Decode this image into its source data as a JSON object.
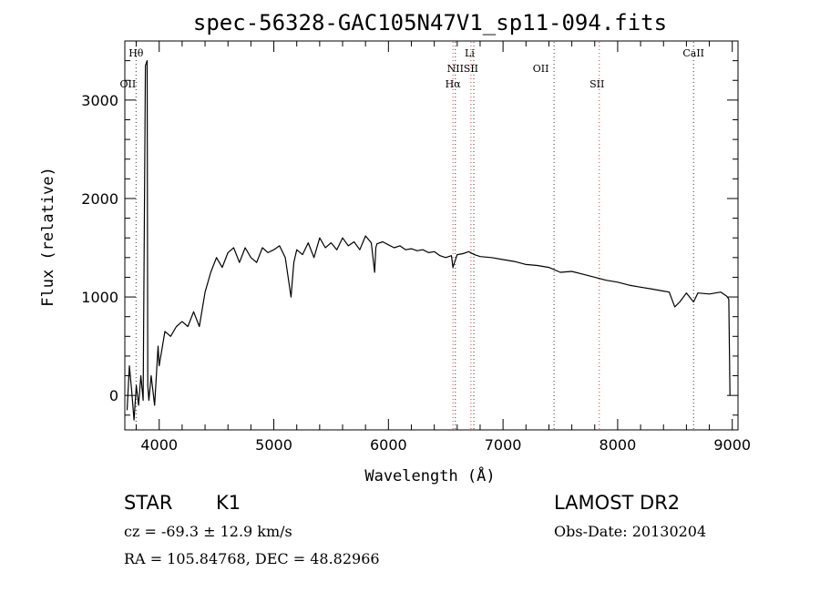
{
  "chart_data": {
    "type": "line",
    "title": "spec-56328-GAC105N47V1_sp11-094.fits",
    "xlabel": "Wavelength (Å)",
    "ylabel": "Flux (relative)",
    "xlim": [
      3700,
      9050
    ],
    "ylim": [
      -350,
      3600
    ],
    "x_ticks": [
      4000,
      5000,
      6000,
      7000,
      8000,
      9000
    ],
    "y_ticks": [
      0,
      1000,
      2000,
      3000
    ],
    "grid": false,
    "series": [
      {
        "x": [
          3720,
          3740,
          3760,
          3780,
          3800,
          3820,
          3840,
          3860,
          3880,
          3895,
          3900,
          3910,
          3930,
          3960,
          3990,
          4000,
          4050,
          4100,
          4150,
          4200,
          4250,
          4300,
          4350,
          4400,
          4450,
          4500,
          4550,
          4600,
          4650,
          4700,
          4750,
          4800,
          4850,
          4900,
          4950,
          5000,
          5050,
          5100,
          5150,
          5175,
          5200,
          5250,
          5300,
          5350,
          5400,
          5450,
          5500,
          5550,
          5600,
          5650,
          5700,
          5750,
          5800,
          5850,
          5880,
          5890,
          5900,
          5950,
          6000,
          6050,
          6100,
          6150,
          6200,
          6250,
          6300,
          6350,
          6400,
          6450,
          6500,
          6550,
          6563,
          6600,
          6650,
          6700,
          6750,
          6800,
          6900,
          7000,
          7100,
          7200,
          7300,
          7400,
          7500,
          7600,
          7700,
          7800,
          7900,
          8000,
          8100,
          8200,
          8300,
          8400,
          8450,
          8498,
          8542,
          8600,
          8662,
          8700,
          8800,
          8900,
          8950,
          8970,
          8980
        ],
        "values": [
          -150,
          300,
          50,
          -250,
          100,
          -100,
          200,
          -50,
          3350,
          3400,
          100,
          -50,
          200,
          -100,
          500,
          300,
          650,
          600,
          700,
          750,
          700,
          850,
          700,
          1050,
          1250,
          1400,
          1300,
          1450,
          1500,
          1350,
          1500,
          1400,
          1350,
          1500,
          1450,
          1480,
          1520,
          1400,
          1000,
          1350,
          1480,
          1430,
          1550,
          1400,
          1600,
          1500,
          1550,
          1480,
          1600,
          1520,
          1560,
          1480,
          1620,
          1550,
          1250,
          1500,
          1540,
          1560,
          1530,
          1500,
          1520,
          1480,
          1490,
          1470,
          1480,
          1450,
          1460,
          1420,
          1400,
          1420,
          1300,
          1430,
          1440,
          1460,
          1430,
          1410,
          1400,
          1380,
          1360,
          1330,
          1320,
          1300,
          1250,
          1260,
          1230,
          1200,
          1170,
          1150,
          1120,
          1100,
          1080,
          1060,
          1050,
          900,
          950,
          1040,
          950,
          1040,
          1030,
          1050,
          1010,
          980,
          0
        ]
      }
    ],
    "annotations": [
      {
        "label": "Hθ",
        "x": 3798,
        "row": 1
      },
      {
        "label": "OII",
        "x": 3727,
        "row": 4
      },
      {
        "label": "Li",
        "x": 6708,
        "row": 2
      },
      {
        "label": "NII",
        "x": 6584,
        "row": 3
      },
      {
        "label": "SII",
        "x": 6720,
        "row": 3
      },
      {
        "label": "Hα",
        "x": 6563,
        "row": 4
      },
      {
        "label": "OII",
        "x": 7330,
        "row": 3
      },
      {
        "label": "SII",
        "x": 7820,
        "row": 4
      },
      {
        "label": "CaII",
        "x": 8662,
        "row": 1
      }
    ],
    "line_markers": [
      {
        "x": 3798,
        "color": "#333333"
      },
      {
        "x": 6563,
        "color": "#e03030"
      },
      {
        "x": 6584,
        "color": "#333333"
      },
      {
        "x": 6720,
        "color": "#e03030"
      },
      {
        "x": 6745,
        "color": "#333333"
      },
      {
        "x": 7445,
        "color": "#333333"
      },
      {
        "x": 7840,
        "color": "#e03030"
      },
      {
        "x": 8662,
        "color": "#333333"
      }
    ]
  },
  "info": {
    "object_class": "STAR",
    "subclass": "K1",
    "survey": "LAMOST DR2",
    "cz": "cz = -69.3 ± 12.9 km/s",
    "obs_date": "Obs-Date: 20130204",
    "radec": "RA = 105.84768, DEC =  48.82966"
  }
}
